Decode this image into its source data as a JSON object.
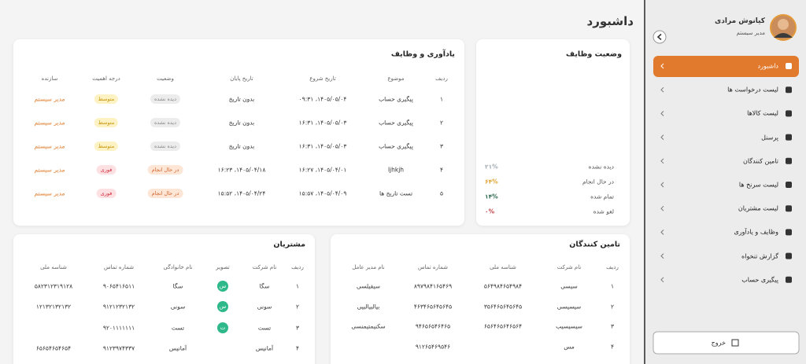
{
  "header": {
    "title": "داشبورد"
  },
  "sidebar": {
    "user_name": "کیانوش مرادی",
    "user_role": "مدیر سیستم",
    "menu": [
      "داشبورد",
      "لیست درخواست ها",
      "لیست کالاها",
      "پرسنل",
      "تامین کنندگان",
      "لیست سرنخ ها",
      "لیست مشتریان",
      "وظایف و یادآوری",
      "گزارش تنخواه",
      "پیگیری حساب"
    ],
    "logout": "خروج"
  },
  "chart_data": {
    "type": "donut",
    "title": "وضعیت وظایف",
    "categories": [
      "دیده نشده",
      "در حال انجام",
      "تمام شده",
      "لغو شده"
    ],
    "values": [
      21,
      64,
      14,
      0
    ],
    "value_labels": [
      "۲۱%",
      "۶۴%",
      "۱۴%",
      "۰%"
    ],
    "colors": [
      "#a3acb3",
      "#e0a432",
      "#2f6b4f",
      "#c0454a"
    ]
  },
  "reminders": {
    "title": "یادآوری و وظایف",
    "columns": [
      "ردیف",
      "موضوع",
      "تاریخ شروع",
      "تاریخ پایان",
      "وضعیت",
      "درجه اهمیت",
      "سازنده"
    ],
    "rows": [
      [
        "۱",
        "پیگیری حساب",
        "۱۴۰۵/۰۵/۰۴، ۰۹:۳۱",
        "بدون تاریخ",
        {
          "text": "دیده نشده",
          "color": "#8a8a8a",
          "background": "#ececec"
        },
        {
          "text": "متوسط",
          "color": "#c9950e",
          "background": "#fdf2c4"
        },
        {
          "text": "مدیر سیستم",
          "color": "#e07b2a"
        }
      ],
      [
        "۲",
        "پیگیری حساب",
        "۱۴۰۵/۰۵/۰۳، ۱۶:۳۱",
        "بدون تاریخ",
        {
          "text": "دیده نشده",
          "color": "#8a8a8a",
          "background": "#ececec"
        },
        {
          "text": "متوسط",
          "color": "#c9950e",
          "background": "#fdf2c4"
        },
        {
          "text": "مدیر سیستم",
          "color": "#e07b2a"
        }
      ],
      [
        "۳",
        "پیگیری حساب",
        "۱۴۰۵/۰۵/۰۳، ۱۶:۳۱",
        "بدون تاریخ",
        {
          "text": "دیده نشده",
          "color": "#8a8a8a",
          "background": "#ececec"
        },
        {
          "text": "متوسط",
          "color": "#c9950e",
          "background": "#fdf2c4"
        },
        {
          "text": "مدیر سیستم",
          "color": "#e07b2a"
        }
      ],
      [
        "۴",
        "ljhkjh",
        "۱۴۰۵/۰۴/۰۱، ۱۶:۲۷",
        "۱۴۰۵/۰۴/۱۸، ۱۶:۲۳",
        {
          "text": "در حال انجام",
          "color": "#d0612a",
          "background": "#fde6d6"
        },
        {
          "text": "فوری",
          "color": "#d2303f",
          "background": "#fde0e2"
        },
        {
          "text": "مدیر سیستم",
          "color": "#e07b2a"
        }
      ],
      [
        "۵",
        "تست تاریخ ها",
        "۱۴۰۵/۰۴/۰۹، ۱۵:۵۷",
        "۱۴۰۵/۰۴/۲۴، ۱۵:۵۲",
        {
          "text": "در حال انجام",
          "color": "#d0612a",
          "background": "#fde6d6"
        },
        {
          "text": "فوری",
          "color": "#d2303f",
          "background": "#fde0e2"
        },
        {
          "text": "مدیر سیستم",
          "color": "#e07b2a"
        }
      ]
    ]
  },
  "suppliers": {
    "title": "تامین کنندگان",
    "columns": [
      "ردیف",
      "نام شرکت",
      "شناسه ملی",
      "شماره تماس",
      "نام مدیر عامل"
    ],
    "rows": [
      [
        "۱",
        "سیسی",
        "۵۶۴۹۸۴۶۵۴۹۸۴",
        "۸۹۷۹۸۴۱۶۵۴۶۹",
        "سیفیلسی"
      ],
      [
        "۲",
        "سیسیسی",
        "۳۵۶۴۶۵۶۴۵۶۴۵",
        "۴۶۳۴۶۵۶۴۵۶۴۵",
        "بیالبیالبیی"
      ],
      [
        "۳",
        "سیسیسیب",
        "۶۵۶۴۶۵۶۴۶۵۶۴",
        "۹۴۶۵۶۵۴۶۴۶۵",
        "سکنیمتیمنسی"
      ],
      [
        "۴",
        "مس",
        null,
        "۹۱۲۶۵۴۶۹۵۴۶",
        null
      ]
    ]
  },
  "customers": {
    "title": "مشتریان",
    "columns": [
      "ردیف",
      "نام شرکت",
      "تصویر",
      "نام خانوادگی",
      "شماره تماس",
      "شناسه ملی"
    ],
    "rows": [
      [
        "۱",
        "سگا",
        {
          "text": "س",
          "color": "#2fb98a",
          "shape": "circle"
        },
        "سگا",
        "۹۰۶۵۴۱۶۵۱۱",
        "۵۸۲۳۱۲۳۱۹۱۲۸"
      ],
      [
        "۲",
        "سونی",
        {
          "text": "س",
          "color": "#2fb98a",
          "shape": "circle"
        },
        "سونی",
        "۹۱۲۱۲۳۲۱۳۲",
        "۱۲۱۳۲۱۳۲۱۳۲"
      ],
      [
        "۳",
        "تست",
        {
          "text": "ت",
          "color": "#2fb98a",
          "shape": "circle"
        },
        "تست",
        "۹۲۰۱۱۱۱۱۱۱",
        null
      ],
      [
        "۴",
        "آمانیس",
        null,
        "آمانیس",
        "۹۱۲۳۹۷۴۳۳۷",
        "۶۵۶۵۴۶۵۴۶۵۴"
      ]
    ]
  }
}
